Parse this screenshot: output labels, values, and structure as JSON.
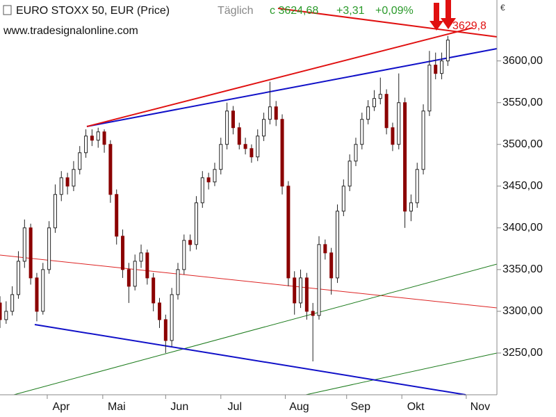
{
  "chart_data": {
    "type": "candlestick",
    "title": "EURO STOXX 50, EUR (Price)",
    "interval": "Täglich",
    "last_close": "c 3624,68",
    "change": "+3,31",
    "change_pct": "+0,09%",
    "source": "www.tradesignalonline.com",
    "currency": "€",
    "marker_label": "3629,8",
    "up_color": "#ffffff",
    "down_color": "#8b0000",
    "outline_color": "#222222",
    "xlim": [
      0,
      162
    ],
    "ylim": [
      3200,
      3673
    ],
    "yticks": [
      {
        "value": 3250,
        "label": "3250,00"
      },
      {
        "value": 3300,
        "label": "3300,00"
      },
      {
        "value": 3350,
        "label": "3350,00"
      },
      {
        "value": 3400,
        "label": "3400,00"
      },
      {
        "value": 3450,
        "label": "3450,00"
      },
      {
        "value": 3500,
        "label": "3500,00"
      },
      {
        "value": 3550,
        "label": "3550,00"
      },
      {
        "value": 3600,
        "label": "3600,00"
      }
    ],
    "xticks": [
      {
        "value": 15.4,
        "label": "Apr"
      },
      {
        "value": 33.5,
        "label": "Mai"
      },
      {
        "value": 54,
        "label": "Jun"
      },
      {
        "value": 72,
        "label": "Jul"
      },
      {
        "value": 93,
        "label": "Aug"
      },
      {
        "value": 113,
        "label": "Sep"
      },
      {
        "value": 131,
        "label": "Okt"
      },
      {
        "value": 152,
        "label": "Nov"
      }
    ],
    "x": [
      0,
      2,
      4,
      6,
      8,
      10,
      12,
      14,
      16,
      18,
      20,
      22,
      24,
      26,
      28,
      30,
      32,
      34,
      36,
      38,
      40,
      42,
      44,
      46,
      48,
      50,
      52,
      54,
      56,
      58,
      60,
      62,
      64,
      66,
      68,
      70,
      72,
      74,
      76,
      78,
      80,
      82,
      84,
      86,
      88,
      90,
      92,
      94,
      96,
      98,
      100,
      102,
      104,
      106,
      108,
      110,
      112,
      114,
      116,
      118,
      120,
      122,
      124,
      126,
      128,
      130,
      132,
      134,
      136,
      138,
      140,
      142,
      144,
      146
    ],
    "ohlc": [
      [
        3310,
        3318,
        3280,
        3290
      ],
      [
        3290,
        3312,
        3285,
        3300
      ],
      [
        3300,
        3330,
        3295,
        3320
      ],
      [
        3320,
        3372,
        3315,
        3360
      ],
      [
        3360,
        3410,
        3352,
        3400
      ],
      [
        3400,
        3405,
        3332,
        3340
      ],
      [
        3340,
        3346,
        3288,
        3300
      ],
      [
        3300,
        3358,
        3296,
        3350
      ],
      [
        3350,
        3408,
        3345,
        3400
      ],
      [
        3400,
        3452,
        3394,
        3440
      ],
      [
        3440,
        3468,
        3432,
        3460
      ],
      [
        3460,
        3466,
        3440,
        3450
      ],
      [
        3450,
        3480,
        3444,
        3470
      ],
      [
        3470,
        3498,
        3464,
        3490
      ],
      [
        3490,
        3518,
        3484,
        3510
      ],
      [
        3510,
        3518,
        3498,
        3505
      ],
      [
        3505,
        3520,
        3496,
        3515
      ],
      [
        3515,
        3518,
        3490,
        3500
      ],
      [
        3500,
        3505,
        3430,
        3440
      ],
      [
        3440,
        3446,
        3380,
        3390
      ],
      [
        3390,
        3398,
        3340,
        3350
      ],
      [
        3350,
        3358,
        3310,
        3330
      ],
      [
        3330,
        3368,
        3325,
        3360
      ],
      [
        3360,
        3380,
        3352,
        3370
      ],
      [
        3370,
        3374,
        3332,
        3340
      ],
      [
        3340,
        3346,
        3300,
        3310
      ],
      [
        3310,
        3316,
        3280,
        3290
      ],
      [
        3290,
        3296,
        3250,
        3265
      ],
      [
        3265,
        3328,
        3258,
        3320
      ],
      [
        3320,
        3358,
        3314,
        3350
      ],
      [
        3350,
        3392,
        3344,
        3385
      ],
      [
        3385,
        3392,
        3372,
        3380
      ],
      [
        3380,
        3438,
        3374,
        3430
      ],
      [
        3430,
        3468,
        3424,
        3460
      ],
      [
        3460,
        3466,
        3446,
        3455
      ],
      [
        3455,
        3478,
        3450,
        3470
      ],
      [
        3470,
        3508,
        3464,
        3500
      ],
      [
        3500,
        3550,
        3494,
        3540
      ],
      [
        3540,
        3546,
        3512,
        3520
      ],
      [
        3520,
        3526,
        3494,
        3500
      ],
      [
        3500,
        3508,
        3488,
        3495
      ],
      [
        3495,
        3500,
        3478,
        3485
      ],
      [
        3485,
        3518,
        3480,
        3510
      ],
      [
        3510,
        3538,
        3504,
        3530
      ],
      [
        3530,
        3575,
        3524,
        3545
      ],
      [
        3545,
        3552,
        3522,
        3530
      ],
      [
        3530,
        3536,
        3440,
        3450
      ],
      [
        3450,
        3456,
        3330,
        3340
      ],
      [
        3340,
        3348,
        3296,
        3310
      ],
      [
        3310,
        3350,
        3304,
        3340
      ],
      [
        3340,
        3346,
        3290,
        3300
      ],
      [
        3300,
        3310,
        3240,
        3295
      ],
      [
        3295,
        3390,
        3290,
        3380
      ],
      [
        3380,
        3386,
        3362,
        3370
      ],
      [
        3370,
        3376,
        3320,
        3340
      ],
      [
        3340,
        3428,
        3334,
        3420
      ],
      [
        3420,
        3458,
        3414,
        3450
      ],
      [
        3450,
        3488,
        3444,
        3480
      ],
      [
        3480,
        3508,
        3474,
        3500
      ],
      [
        3500,
        3538,
        3494,
        3530
      ],
      [
        3530,
        3553,
        3524,
        3545
      ],
      [
        3545,
        3565,
        3540,
        3555
      ],
      [
        3555,
        3580,
        3548,
        3560
      ],
      [
        3560,
        3566,
        3512,
        3520
      ],
      [
        3520,
        3526,
        3492,
        3500
      ],
      [
        3500,
        3585,
        3494,
        3550
      ],
      [
        3550,
        3556,
        3400,
        3420
      ],
      [
        3420,
        3440,
        3408,
        3430
      ],
      [
        3430,
        3478,
        3424,
        3470
      ],
      [
        3470,
        3548,
        3464,
        3540
      ],
      [
        3540,
        3612,
        3534,
        3595
      ],
      [
        3595,
        3610,
        3578,
        3585
      ],
      [
        3585,
        3610,
        3578,
        3600
      ],
      [
        3600,
        3630,
        3594,
        3625
      ]
    ]
  }
}
